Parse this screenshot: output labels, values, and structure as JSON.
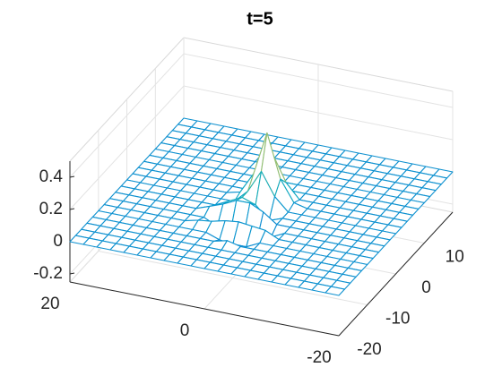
{
  "chart_data": {
    "type": "mesh",
    "title": "t=5",
    "x": [
      -20,
      -18,
      -16,
      -14,
      -12,
      -10,
      -8,
      -6,
      -4,
      -2,
      0,
      2,
      4,
      6,
      8,
      10,
      12,
      14,
      16,
      18,
      20
    ],
    "y": [
      -20,
      -18,
      -16,
      -14,
      -12,
      -10,
      -8,
      -6,
      -4,
      -2,
      0,
      2,
      4,
      6,
      8,
      10,
      12,
      14,
      16,
      18,
      20
    ],
    "z": [
      [
        0,
        0,
        0,
        0,
        0,
        0,
        0,
        0,
        0,
        0,
        0,
        0,
        0,
        0,
        0,
        0,
        0,
        0,
        0,
        0,
        0
      ],
      [
        0,
        0,
        0,
        0,
        0,
        0,
        0,
        0,
        0,
        0,
        0,
        0,
        0,
        0,
        0,
        0,
        0,
        0,
        0,
        0,
        0
      ],
      [
        0,
        0,
        0,
        0,
        0,
        0,
        0,
        0,
        0,
        0,
        0,
        0,
        0,
        0,
        0,
        0,
        0,
        0,
        0,
        0,
        0
      ],
      [
        0,
        0,
        0,
        0,
        0,
        0,
        0,
        0,
        0,
        0,
        0,
        0,
        0,
        0,
        0,
        0,
        0,
        0,
        0,
        0,
        0
      ],
      [
        0,
        0,
        0,
        0,
        0,
        0,
        0,
        0,
        0,
        0,
        0.02,
        0,
        0,
        0,
        0,
        0,
        0,
        0,
        0,
        0,
        0
      ],
      [
        0,
        0,
        0,
        0,
        0,
        0,
        0,
        0,
        0,
        -0.04,
        -0.04,
        -0.03,
        0,
        0,
        0,
        0,
        0,
        0,
        0,
        0,
        0
      ],
      [
        0,
        0,
        0,
        0,
        0,
        0,
        0,
        0,
        0.04,
        0.05,
        0.06,
        0.05,
        0.03,
        0.02,
        0,
        0,
        0,
        0,
        0,
        0,
        0
      ],
      [
        0,
        0,
        0,
        0,
        0,
        0,
        0,
        0,
        -0.04,
        -0.06,
        -0.05,
        -0.05,
        -0.04,
        0,
        0,
        0,
        0,
        0,
        0,
        0,
        0
      ],
      [
        0,
        0,
        0,
        0,
        0,
        0,
        0,
        0,
        0,
        0.06,
        0.1,
        0.1,
        0.06,
        0.03,
        0,
        0,
        0,
        0,
        0,
        0,
        0
      ],
      [
        0,
        0,
        0,
        0,
        0,
        0,
        0,
        0,
        0,
        -0.03,
        0.05,
        0.08,
        0.04,
        0,
        0,
        0,
        0,
        0,
        0,
        0,
        0
      ],
      [
        0,
        0,
        0,
        0,
        0,
        0,
        0,
        0,
        0,
        0.08,
        0.22,
        0.08,
        0,
        0,
        0,
        0,
        0,
        0,
        0,
        0,
        0
      ],
      [
        0,
        0,
        0,
        0,
        0,
        0,
        0,
        0,
        0.02,
        0.15,
        0.42,
        0.15,
        0.02,
        0,
        0,
        0,
        0,
        0,
        0,
        0,
        0
      ],
      [
        0,
        0,
        0,
        0,
        0,
        0,
        0,
        0,
        0,
        0.09,
        0.25,
        0.09,
        0,
        0,
        0,
        0,
        0,
        0,
        0,
        0,
        0
      ],
      [
        0,
        0,
        0,
        0,
        0,
        0,
        0,
        0,
        0,
        0,
        0.08,
        0,
        0,
        0,
        0,
        0,
        0,
        0,
        0,
        0,
        0
      ],
      [
        0,
        0,
        0,
        0,
        0,
        0,
        0,
        0,
        0,
        0,
        0,
        0,
        0,
        0,
        0,
        0,
        0,
        0,
        0,
        0,
        0
      ],
      [
        0,
        0,
        0,
        0,
        0,
        0,
        0,
        0,
        0,
        0,
        0,
        0,
        0,
        0,
        0,
        0,
        0,
        0,
        0,
        0,
        0
      ],
      [
        0,
        0,
        0,
        0,
        0,
        0,
        0,
        0,
        0,
        0,
        0,
        0,
        0,
        0,
        0,
        0,
        0,
        0,
        0,
        0,
        0
      ],
      [
        0,
        0,
        0,
        0,
        0,
        0,
        0,
        0,
        0,
        0,
        0,
        0,
        0,
        0,
        0,
        0,
        0,
        0,
        0,
        0,
        0
      ],
      [
        0,
        0,
        0,
        0,
        0,
        0,
        0,
        0,
        0,
        0,
        0,
        0,
        0,
        0,
        0,
        0,
        0,
        0,
        0,
        0,
        0
      ],
      [
        0,
        0,
        0,
        0,
        0,
        0,
        0,
        0,
        0,
        0,
        0,
        0,
        0,
        0,
        0,
        0,
        0,
        0,
        0,
        0,
        0
      ],
      [
        0,
        0,
        0,
        0,
        0,
        0,
        0,
        0,
        0,
        0,
        0,
        0,
        0,
        0,
        0,
        0,
        0,
        0,
        0,
        0,
        0
      ]
    ],
    "xlim": [
      -20,
      20
    ],
    "xticks": [
      -20,
      0,
      20
    ],
    "ylim": [
      -20,
      20
    ],
    "yticks": [
      -20,
      -10,
      0,
      10
    ],
    "zlim": [
      -0.25,
      0.5
    ],
    "zticks": [
      -0.2,
      0,
      0.2,
      0.4
    ],
    "grid": true,
    "colormap": [
      "#352a87",
      "#0f5cdd",
      "#1481d6",
      "#06a4ca",
      "#2eb7a4",
      "#87bf77",
      "#d1bb59",
      "#fec832",
      "#f9fb0e"
    ],
    "clim": [
      -0.2,
      0.45
    ]
  }
}
